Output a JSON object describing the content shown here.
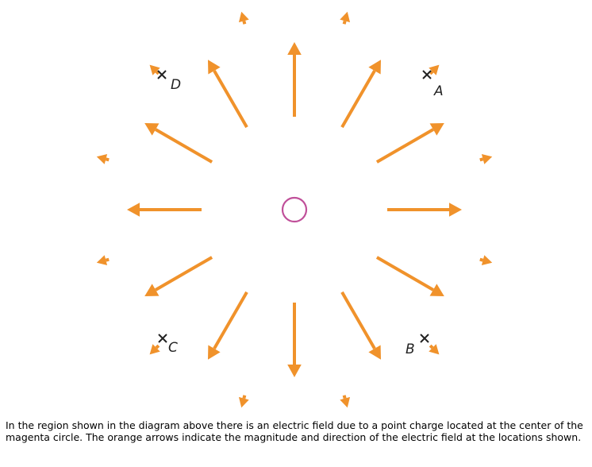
{
  "colors": {
    "arrow": "#f0922b",
    "charge_ring": "#c0509a",
    "marker": "#222222"
  },
  "points": [
    {
      "name": "point-a",
      "label": "A",
      "icon": "x-mark-icon"
    },
    {
      "name": "point-b",
      "label": "B",
      "icon": "x-mark-icon"
    },
    {
      "name": "point-c",
      "label": "C",
      "icon": "x-mark-icon"
    },
    {
      "name": "point-d",
      "label": "D",
      "icon": "x-mark-icon"
    }
  ],
  "caption": "In the region shown in the diagram above there is an electric field due to a point charge located at the center of the magenta circle. The orange arrows indicate the magnitude and direction of the electric field at the locations shown."
}
